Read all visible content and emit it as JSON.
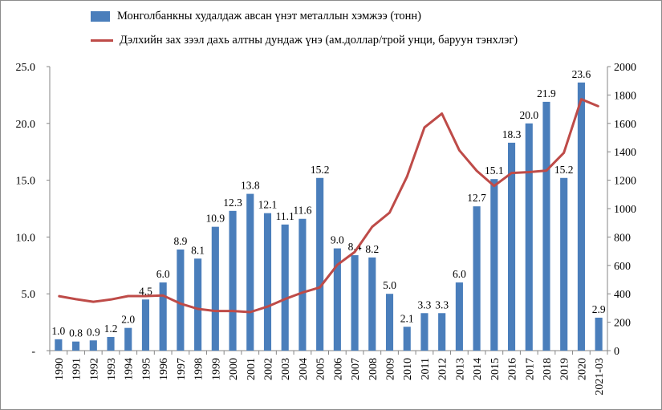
{
  "colors": {
    "bar": "#4a7ebb",
    "line": "#be4b48",
    "axis": "#868686"
  },
  "legend": {
    "bar_label": "Монголбанкны худалдаж авсан үнэт металлын хэмжээ (тонн)",
    "line_label": "Дэлхийн зах зээл дахь алтны дундаж үнэ (ам.доллар/трой унци, баруун тэнхлэг)"
  },
  "chart_data": {
    "type": "bar",
    "legend_position": "top",
    "grid": false,
    "categories": [
      "1990",
      "1991",
      "1992",
      "1993",
      "1994",
      "1995",
      "1996",
      "1997",
      "1998",
      "1999",
      "2000",
      "2001",
      "2002",
      "2003",
      "2004",
      "2005",
      "2006",
      "2007",
      "2008",
      "2009",
      "2010",
      "2011",
      "2012",
      "2013",
      "2014",
      "2015",
      "2016",
      "2017",
      "2018",
      "2019",
      "2020",
      "2021-03"
    ],
    "series": [
      {
        "name": "Монголбанкны худалдаж авсан үнэт металлын хэмжээ (тонн)",
        "type": "bar",
        "axis": "left",
        "values": [
          1.0,
          0.8,
          0.9,
          1.2,
          2.0,
          4.5,
          6.0,
          8.9,
          8.1,
          10.9,
          12.3,
          13.8,
          12.1,
          11.1,
          11.6,
          15.2,
          9.0,
          8.4,
          8.2,
          5.0,
          2.1,
          3.3,
          3.3,
          6.0,
          12.7,
          15.1,
          18.3,
          20.0,
          21.9,
          15.2,
          23.6,
          2.9
        ]
      },
      {
        "name": "Дэлхийн зах зээл дахь алтны дундаж үнэ (ам.доллар/трой унци, баруун тэнхлэг)",
        "type": "line",
        "axis": "right",
        "values": [
          384,
          362,
          344,
          360,
          384,
          384,
          388,
          331,
          294,
          279,
          279,
          271,
          310,
          363,
          409,
          445,
          604,
          695,
          872,
          972,
          1225,
          1572,
          1669,
          1411,
          1266,
          1160,
          1251,
          1257,
          1268,
          1393,
          1770,
          1720
        ]
      }
    ],
    "left_axis": {
      "min": 0,
      "max": 25,
      "ticks": [
        "-",
        "5.0",
        "10.0",
        "15.0",
        "20.0",
        "25.0"
      ]
    },
    "right_axis": {
      "min": 0,
      "max": 2000,
      "ticks": [
        "0",
        "200",
        "400",
        "600",
        "800",
        "1000",
        "1200",
        "1400",
        "1600",
        "1800",
        "2000"
      ]
    },
    "bar_data_labels": [
      "1.0",
      "0.8",
      "0.9",
      "1.2",
      "2.0",
      "4.5",
      "6.0",
      "8.9",
      "8.1",
      "10.9",
      "12.3",
      "13.8",
      "12.1",
      "11.1",
      "11.6",
      "15.2",
      "9.0",
      "8.4",
      "8.2",
      "5.0",
      "2.1",
      "3.3",
      "3.3",
      "6.0",
      "12.7",
      "15.1",
      "18.3",
      "20.0",
      "21.9",
      "15.2",
      "23.6",
      "2.9"
    ]
  }
}
